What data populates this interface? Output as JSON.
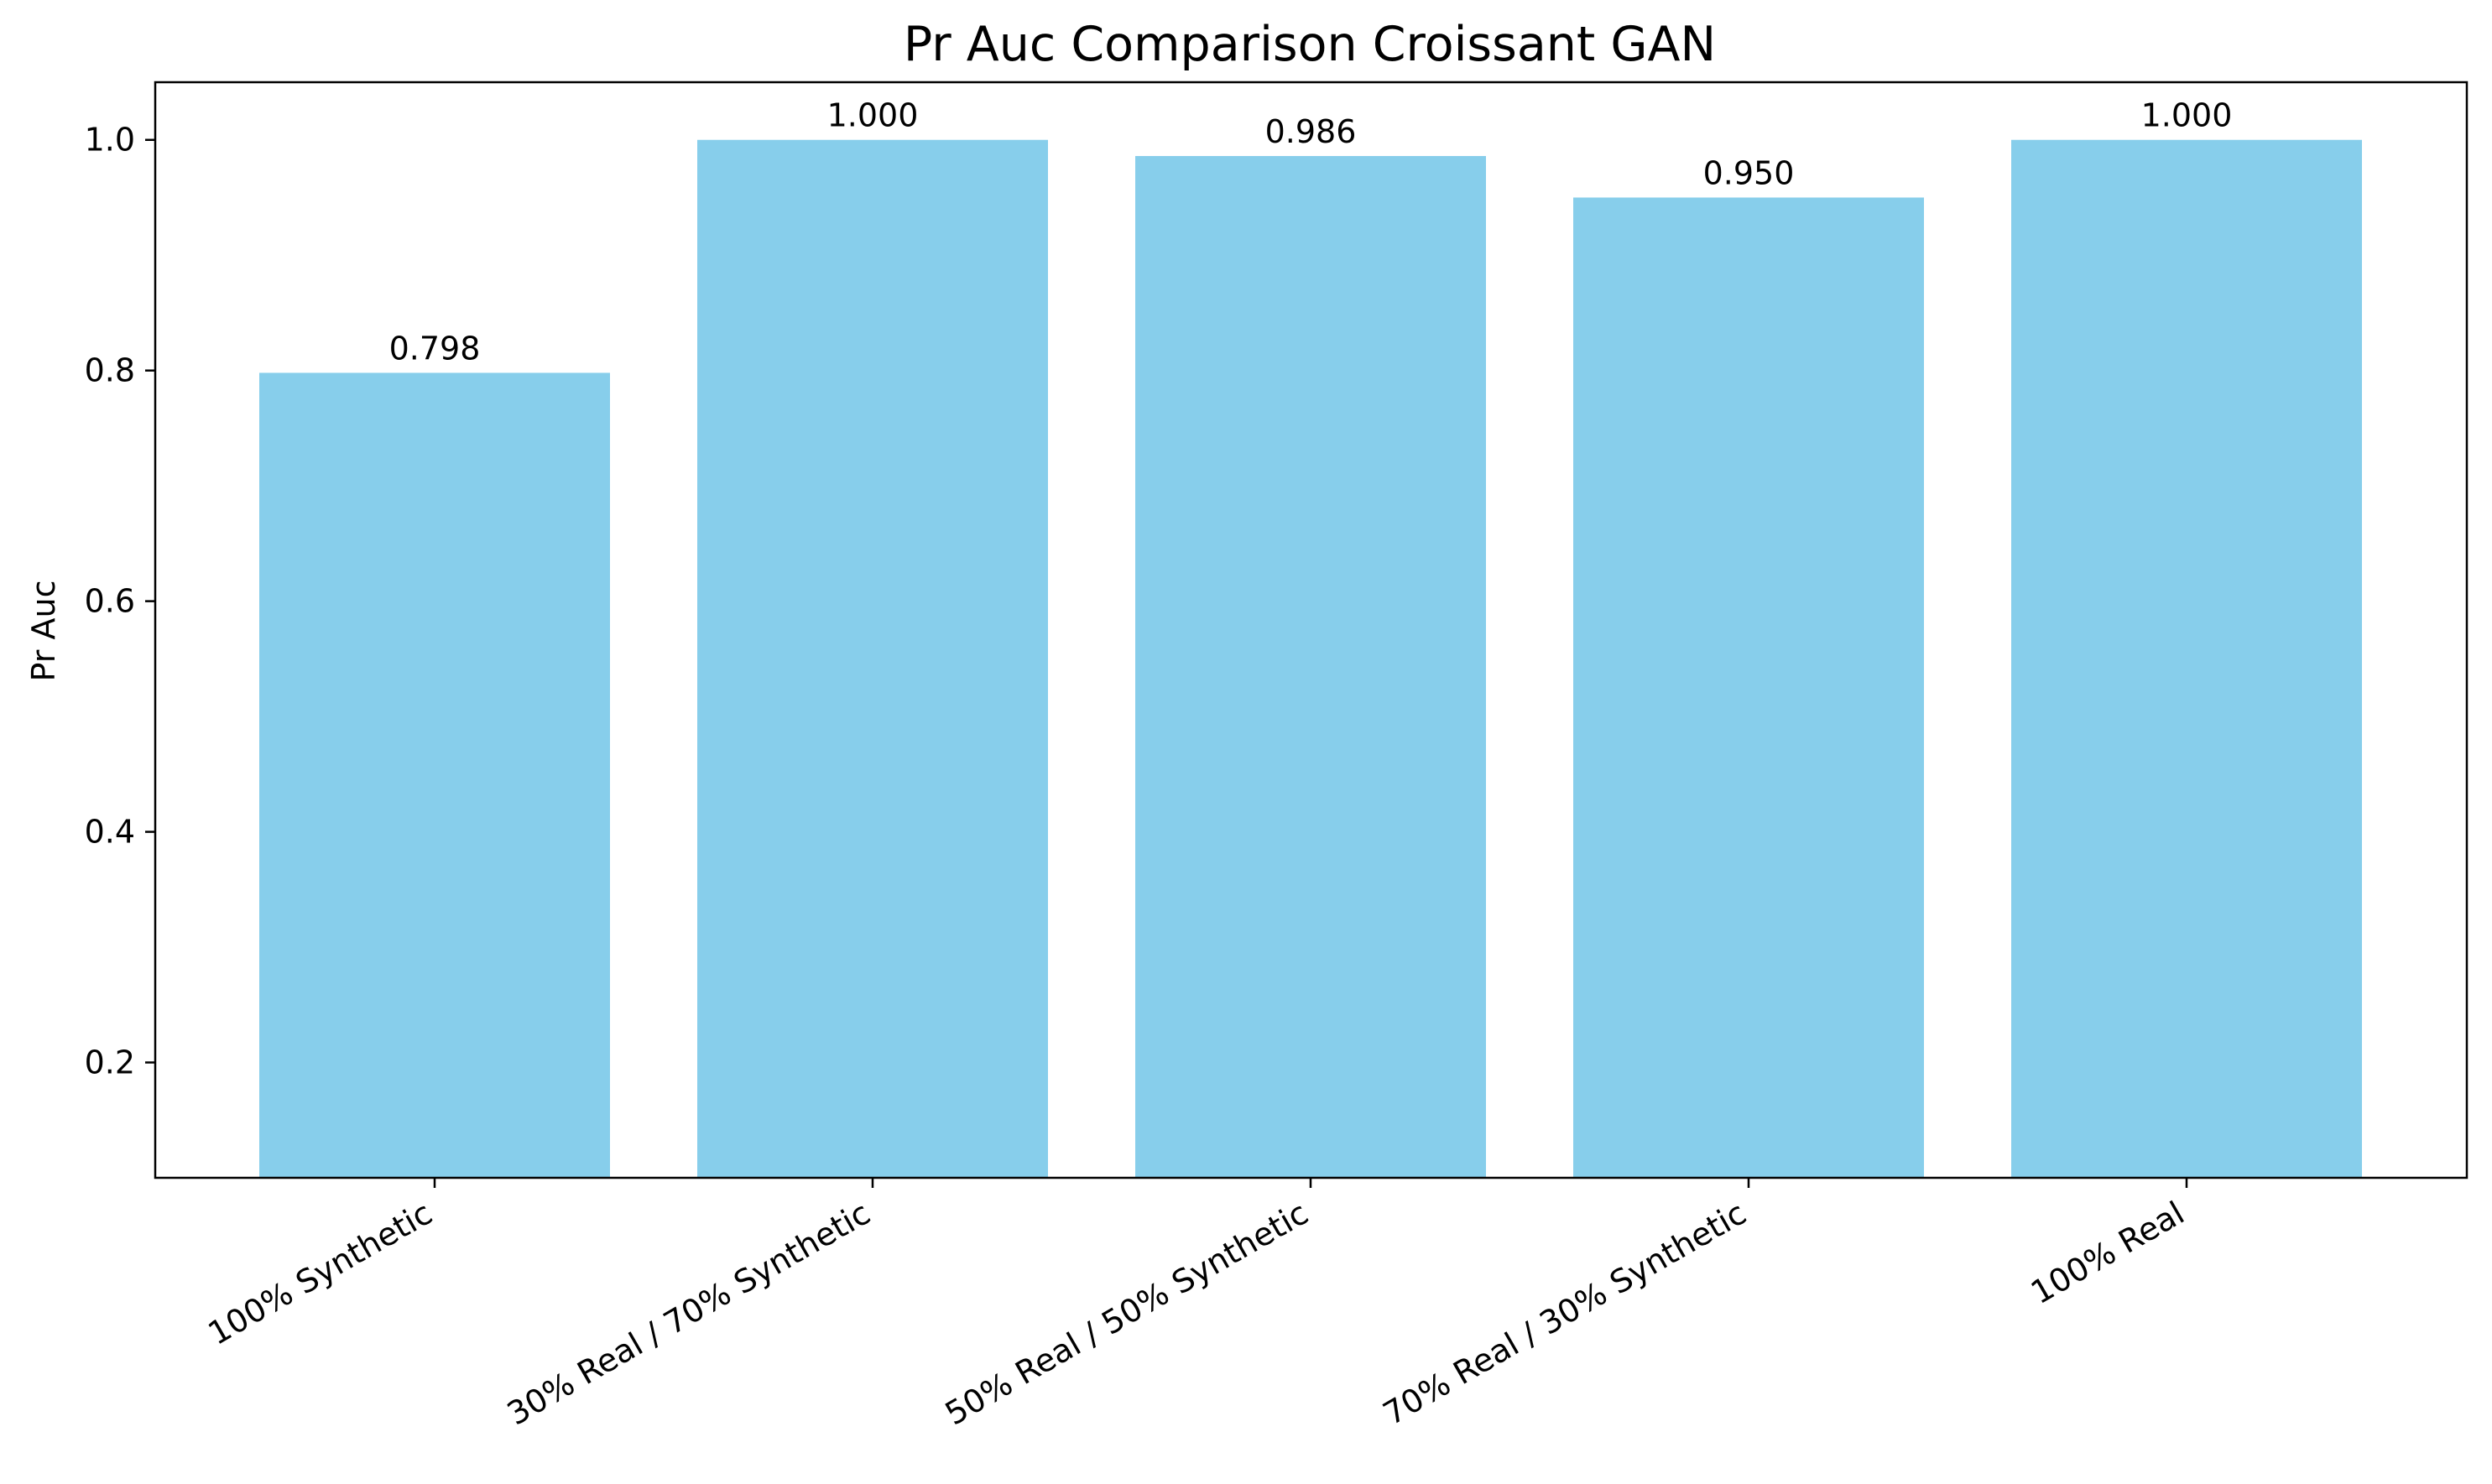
{
  "chart_data": {
    "type": "bar",
    "title": "Pr Auc Comparison Croissant GAN",
    "xlabel": "",
    "ylabel": "Pr Auc",
    "categories": [
      "100% Synthetic",
      "30% Real / 70% Synthetic",
      "50% Real / 50% Synthetic",
      "70% Real / 30% Synthetic",
      "100% Real"
    ],
    "values": [
      0.798,
      1.0,
      0.986,
      0.95,
      1.0
    ],
    "value_labels": [
      "0.798",
      "1.000",
      "0.986",
      "0.950",
      "1.000"
    ],
    "ylim": [
      0.1,
      1.05
    ],
    "yticks": [
      0.2,
      0.4,
      0.6,
      0.8,
      1.0
    ],
    "ytick_labels": [
      "0.2",
      "0.4",
      "0.6",
      "0.8",
      "1.0"
    ],
    "grid": false,
    "legend": "none",
    "colors": {
      "bar": "#87ceeb",
      "axes": "#000000",
      "text": "#000000",
      "background": "#ffffff"
    }
  }
}
